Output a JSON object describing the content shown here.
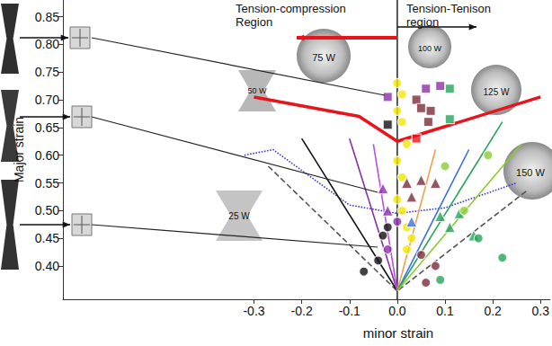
{
  "chart_data": {
    "type": "scatter",
    "xlabel": "minor strain",
    "ylabel": "Major strain",
    "xlim": [
      -0.7,
      0.32
    ],
    "ylim": [
      0.34,
      0.88
    ],
    "xticks": [
      -0.3,
      -0.2,
      -0.1,
      {
        "value": 0,
        "label": "0.0"
      },
      0.1,
      0.2,
      0.3
    ],
    "yticks": [
      {
        "value": 0.4,
        "label": "0.40"
      },
      0.45,
      {
        "value": 0.5,
        "label": "0.50"
      },
      0.55,
      {
        "value": 0.6,
        "label": "0.60"
      },
      0.65,
      {
        "value": 0.7,
        "label": "0.70"
      },
      0.75,
      {
        "value": 0.8,
        "label": "0.80"
      },
      0.85
    ],
    "grid": false,
    "annotations": [
      "Tension-compression Region",
      "Tension-Tenison region",
      "75 W",
      "100 W",
      "125 W",
      "150 W",
      "50 W",
      "25 W"
    ],
    "series": [
      {
        "type": "line",
        "color": "#e8141b",
        "line_style": "solid",
        "marker": "none",
        "x": [
          -0.3,
          -0.08,
          0,
          0.3
        ],
        "values": [
          0.705,
          0.67,
          0.625,
          0.705
        ]
      },
      {
        "type": "line",
        "color": "#3b3bd0",
        "line_style": "dotted",
        "marker": "none",
        "x": [
          -0.32,
          -0.26,
          -0.1,
          0,
          0.1,
          0.25
        ],
        "values": [
          0.6,
          0.61,
          0.51,
          0.495,
          0.505,
          0.55
        ]
      },
      {
        "type": "line",
        "color": "#555555",
        "line_style": "dashed",
        "marker": "none",
        "x": [
          -0.27,
          0,
          0.27
        ],
        "values": [
          0.58,
          0.355,
          0.535
        ]
      },
      {
        "type": "line",
        "color": "#111111",
        "line_style": "solid",
        "marker": "none",
        "x": [
          0,
          -0.2
        ],
        "values": [
          0.355,
          0.63
        ]
      },
      {
        "type": "line",
        "color": "#8b2fa8",
        "line_style": "solid",
        "marker": "none",
        "x": [
          0,
          -0.1
        ],
        "values": [
          0.355,
          0.63
        ]
      },
      {
        "type": "line",
        "color": "#c050e0",
        "line_style": "solid",
        "marker": "none",
        "x": [
          0,
          -0.05
        ],
        "values": [
          0.355,
          0.62
        ]
      },
      {
        "type": "line",
        "color": "#f0a050",
        "line_style": "solid",
        "marker": "none",
        "x": [
          0,
          0.08
        ],
        "values": [
          0.355,
          0.61
        ]
      },
      {
        "type": "line",
        "color": "#3a6ee8",
        "line_style": "solid",
        "marker": "none",
        "x": [
          0,
          0.15
        ],
        "values": [
          0.355,
          0.61
        ]
      },
      {
        "type": "line",
        "color": "#27a35a",
        "line_style": "solid",
        "marker": "none",
        "x": [
          0,
          0.22
        ],
        "values": [
          0.355,
          0.66
        ]
      },
      {
        "type": "line",
        "color": "#88cc33",
        "line_style": "solid",
        "marker": "none",
        "x": [
          0,
          0.26
        ],
        "values": [
          0.355,
          0.62
        ]
      },
      {
        "type": "scatter",
        "color": "#f2e600",
        "marker": "circle",
        "x": [
          0.0,
          0.01,
          0.0,
          0.01,
          0.02,
          0.0,
          0.01,
          0.0,
          0.01,
          0.02,
          0.03,
          0.02
        ],
        "values": [
          0.73,
          0.71,
          0.68,
          0.66,
          0.62,
          0.59,
          0.56,
          0.52,
          0.5,
          0.47,
          0.45,
          0.43
        ]
      },
      {
        "type": "scatter",
        "color": "#8b2fa8",
        "marker": "rect",
        "x": [
          -0.02,
          0.06,
          0.09
        ],
        "values": [
          0.705,
          0.72,
          0.725
        ]
      },
      {
        "type": "scatter",
        "color": "#7a2a3a",
        "marker": "rect",
        "x": [
          0.04,
          0.05,
          0.07,
          0.065
        ],
        "values": [
          0.7,
          0.685,
          0.68,
          0.66
        ]
      },
      {
        "type": "scatter",
        "color": "#27a35a",
        "marker": "rect",
        "x": [
          0.11,
          0.11
        ],
        "values": [
          0.72,
          0.665
        ]
      },
      {
        "type": "scatter",
        "color": "#111111",
        "marker": "rect",
        "x": [
          -0.02
        ],
        "values": [
          0.655
        ]
      },
      {
        "type": "scatter",
        "color": "#e8141b",
        "marker": "rect",
        "x": [
          0.04
        ],
        "values": [
          0.63
        ]
      },
      {
        "type": "scatter",
        "color": "#7a2a3a",
        "marker": "triangle",
        "x": [
          0.02,
          0.05,
          0.08,
          0.03
        ],
        "values": [
          0.55,
          0.555,
          0.55,
          0.525
        ]
      },
      {
        "type": "scatter",
        "color": "#8b2fa8",
        "marker": "triangle",
        "x": [
          -0.03,
          -0.02
        ],
        "values": [
          0.54,
          0.5
        ]
      },
      {
        "type": "scatter",
        "color": "#27a35a",
        "marker": "triangle",
        "x": [
          0.09,
          0.13,
          0.16,
          0.11
        ],
        "values": [
          0.49,
          0.495,
          0.455,
          0.47
        ]
      },
      {
        "type": "scatter",
        "color": "#3a6ee8",
        "marker": "triangle",
        "x": [
          0.03
        ],
        "values": [
          0.48
        ]
      },
      {
        "type": "scatter",
        "color": "#111111",
        "marker": "circle",
        "x": [
          -0.07,
          -0.04,
          -0.03,
          -0.02
        ],
        "values": [
          0.39,
          0.41,
          0.455,
          0.47
        ]
      },
      {
        "type": "scatter",
        "color": "#8b2fa8",
        "marker": "circle",
        "x": [
          -0.02,
          0.0
        ],
        "values": [
          0.43,
          0.48
        ]
      },
      {
        "type": "scatter",
        "color": "#7a2a3a",
        "marker": "circle",
        "x": [
          0.05,
          0.08,
          0.06
        ],
        "values": [
          0.42,
          0.4,
          0.37
        ]
      },
      {
        "type": "scatter",
        "color": "#27a35a",
        "marker": "circle",
        "x": [
          0.17,
          0.22,
          0.09
        ],
        "values": [
          0.45,
          0.415,
          0.375
        ]
      },
      {
        "type": "scatter",
        "color": "#88cc33",
        "marker": "circle",
        "x": [
          0.1,
          0.14,
          0.19
        ],
        "values": [
          0.58,
          0.5,
          0.6
        ]
      }
    ]
  }
}
